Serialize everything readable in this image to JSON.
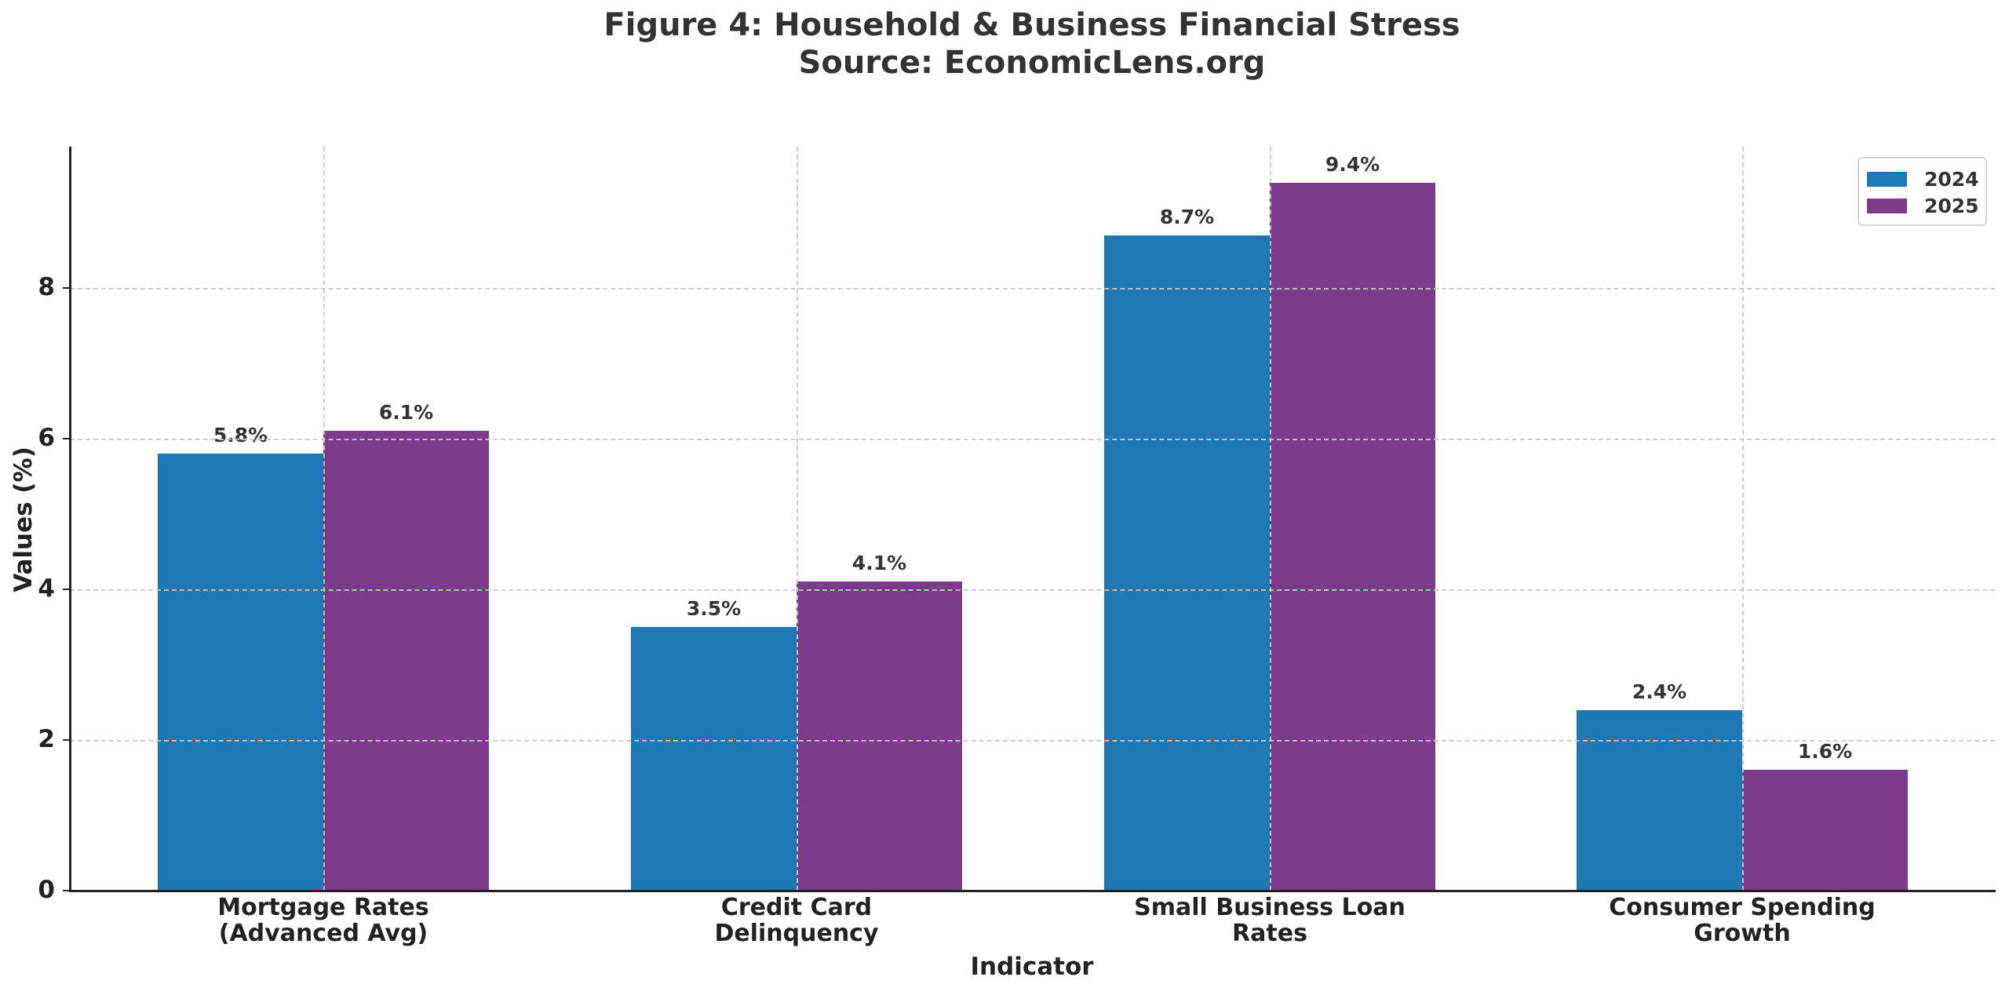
{
  "title_line1": "Figure 4: Household & Business Financial Stress",
  "title_line2": "Source: EconomicLens.org",
  "xlabel": "Indicator",
  "ylabel": "Values (%)",
  "yticks": [
    "0",
    "2",
    "4",
    "6",
    "8"
  ],
  "categories": [
    {
      "line1": "Mortgage Rates",
      "line2": "(Advanced Avg)"
    },
    {
      "line1": "Credit Card",
      "line2": "Delinquency"
    },
    {
      "line1": "Small Business Loan",
      "line2": "Rates"
    },
    {
      "line1": "Consumer Spending",
      "line2": "Growth"
    }
  ],
  "legend": [
    {
      "label": "2024",
      "color": "#1f77b4"
    },
    {
      "label": "2025",
      "color": "#7d3c8a"
    }
  ],
  "bar_labels": {
    "s2024": [
      "5.8%",
      "3.5%",
      "8.7%",
      "2.4%"
    ],
    "s2025": [
      "6.1%",
      "4.1%",
      "9.4%",
      "1.6%"
    ]
  },
  "chart_data": {
    "type": "bar",
    "title": "Figure 4: Household & Business Financial Stress\nSource: EconomicLens.org",
    "categories": [
      "Mortgage Rates (Advanced Avg)",
      "Credit Card Delinquency",
      "Small Business Loan Rates",
      "Consumer Spending Growth"
    ],
    "series": [
      {
        "name": "2024",
        "color": "#1f77b4",
        "values": [
          5.8,
          3.5,
          8.7,
          2.4
        ]
      },
      {
        "name": "2025",
        "color": "#7d3c8a",
        "values": [
          6.1,
          4.1,
          9.4,
          1.6
        ]
      }
    ],
    "xlabel": "Indicator",
    "ylabel": "Values (%)",
    "ylim": [
      0,
      9.87
    ],
    "yticks": [
      0,
      2,
      4,
      6,
      8
    ],
    "grid": true,
    "legend_position": "upper right",
    "data_labels": true
  }
}
